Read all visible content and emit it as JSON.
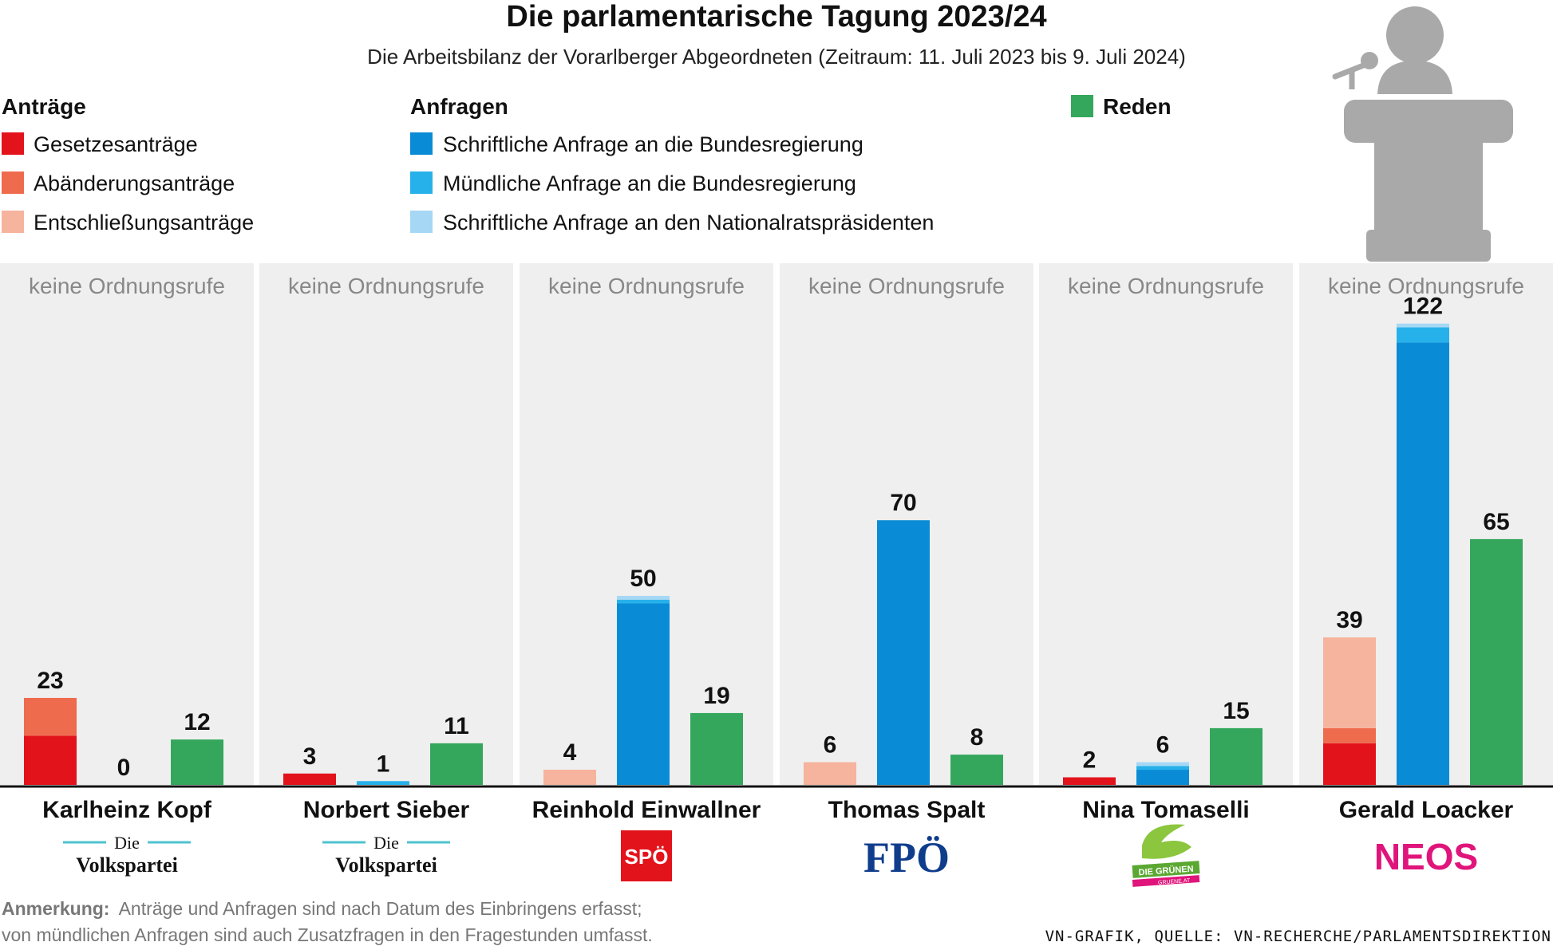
{
  "chart_data": {
    "type": "bar",
    "title": "Die parlamentarische Tagung 2023/24",
    "subtitle": "Die Arbeitsbilanz der Vorarlberger Abgeordneten (Zeitraum: 11. Juli 2023 bis 9. Juli 2024)",
    "legend": {
      "antraege": {
        "title": "Anträge",
        "items": [
          {
            "label": "Gesetzesanträge",
            "color": "#e3131b"
          },
          {
            "label": "Abänderungsanträge",
            "color": "#ef6b4e"
          },
          {
            "label": "Entschließungsanträge",
            "color": "#f6b39d"
          }
        ]
      },
      "anfragen": {
        "title": "Anfragen",
        "items": [
          {
            "label": "Schriftliche Anfrage an die Bundesregierung",
            "color": "#0a8bd6"
          },
          {
            "label": "Mündliche Anfrage an die Bundesregierung",
            "color": "#27b1ea"
          },
          {
            "label": "Schriftliche Anfrage an den Nationalratspräsidenten",
            "color": "#a6d8f5"
          }
        ]
      },
      "reden": {
        "title": "Reden",
        "color": "#34a75c"
      }
    },
    "ylim": [
      0,
      130
    ],
    "panels": [
      {
        "name": "Karlheinz Kopf",
        "party": "ÖVP",
        "ordnungsrufe": "keine Ordnungsrufe",
        "logo": {
          "line1": "Die",
          "line2": "Volkspartei"
        },
        "antraege": {
          "total": 23,
          "gesetz": 13,
          "abaenderung": 10,
          "entschliessung": 0
        },
        "anfragen": {
          "total": 0,
          "schriftlich": 0,
          "muendlich": 0,
          "praesident": 0
        },
        "reden": 12
      },
      {
        "name": "Norbert Sieber",
        "party": "ÖVP",
        "ordnungsrufe": "keine Ordnungsrufe",
        "logo": {
          "line1": "Die",
          "line2": "Volkspartei"
        },
        "antraege": {
          "total": 3,
          "gesetz": 3,
          "abaenderung": 0,
          "entschliessung": 0
        },
        "anfragen": {
          "total": 1,
          "schriftlich": 0,
          "muendlich": 1,
          "praesident": 0
        },
        "reden": 11
      },
      {
        "name": "Reinhold Einwallner",
        "party": "SPÖ",
        "ordnungsrufe": "keine Ordnungsrufe",
        "logo": {
          "text": "SPÖ",
          "color": "#e3131b"
        },
        "antraege": {
          "total": 4,
          "gesetz": 0,
          "abaenderung": 0,
          "entschliessung": 4
        },
        "anfragen": {
          "total": 50,
          "schriftlich": 48,
          "muendlich": 1,
          "praesident": 1
        },
        "reden": 19
      },
      {
        "name": "Thomas Spalt",
        "party": "FPÖ",
        "ordnungsrufe": "keine Ordnungsrufe",
        "logo": {
          "text": "FPÖ",
          "color": "#0f3d8c"
        },
        "antraege": {
          "total": 6,
          "gesetz": 0,
          "abaenderung": 0,
          "entschliessung": 6
        },
        "anfragen": {
          "total": 70,
          "schriftlich": 70,
          "muendlich": 0,
          "praesident": 0
        },
        "reden": 8
      },
      {
        "name": "Nina Tomaselli",
        "party": "Grüne",
        "ordnungsrufe": "keine Ordnungsrufe",
        "logo": {
          "line1": "DIE GRÜNEN",
          "line2": "GRUENE.AT"
        },
        "antraege": {
          "total": 2,
          "gesetz": 2,
          "abaenderung": 0,
          "entschliessung": 0
        },
        "anfragen": {
          "total": 6,
          "schriftlich": 4,
          "muendlich": 1,
          "praesident": 1
        },
        "reden": 15
      },
      {
        "name": "Gerald Loacker",
        "party": "NEOS",
        "ordnungsrufe": "keine Ordnungsrufe",
        "logo": {
          "text": "NEOS",
          "color": "#e0157b"
        },
        "antraege": {
          "total": 39,
          "gesetz": 11,
          "abaenderung": 4,
          "entschliessung": 24
        },
        "anfragen": {
          "total": 122,
          "schriftlich": 117,
          "muendlich": 4,
          "praesident": 1
        },
        "reden": 65
      }
    ],
    "note_label": "Anmerkung:",
    "note_line1": "Anträge und Anfragen sind nach Datum des Einbringens erfasst;",
    "note_line2": "von mündlichen Anfragen sind auch Zusatzfragen in den Fragestunden umfasst.",
    "source": "VN-GRAFIK, QUELLE: VN-RECHERCHE/PARLAMENTSDIREKTION"
  }
}
